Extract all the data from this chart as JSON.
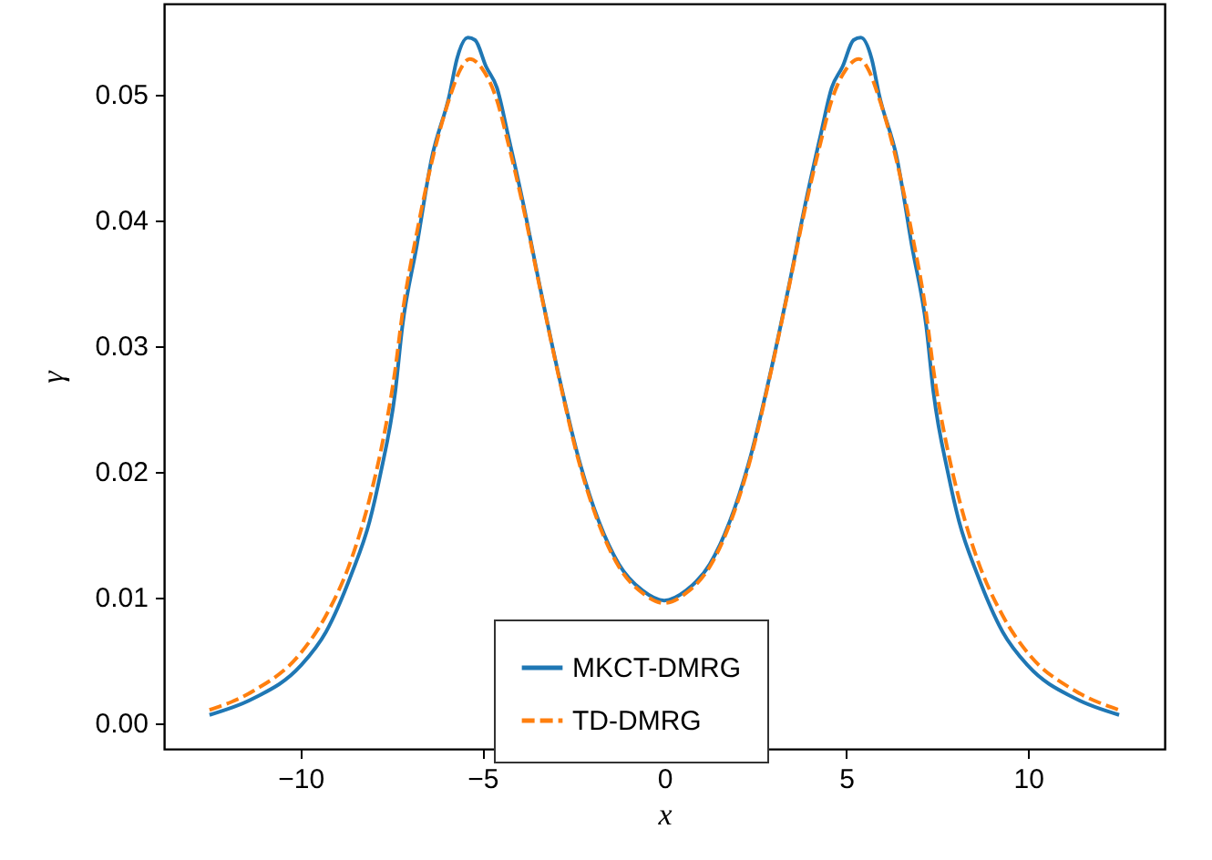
{
  "chart_data": {
    "type": "line",
    "xlabel": "x",
    "ylabel": "γ",
    "xlim": [
      -13.75,
      13.75
    ],
    "xticks": [
      {
        "value": -10,
        "label": "−10"
      },
      {
        "value": -5,
        "label": "−5"
      },
      0,
      5,
      10
    ],
    "ylim": [
      -0.0021,
      0.0572
    ],
    "yticks": [
      {
        "value": 0,
        "label": "0.00"
      },
      {
        "value": 0.01,
        "label": "0.01"
      },
      {
        "value": 0.02,
        "label": "0.02"
      },
      {
        "value": 0.03,
        "label": "0.03"
      },
      {
        "value": 0.04,
        "label": "0.04"
      },
      {
        "value": 0.05,
        "label": "0.05"
      }
    ],
    "grid": false,
    "legend": "bottom",
    "marker": "none",
    "series": [
      {
        "name": "MKCT-DMRG",
        "color": "#1f77b4",
        "line_style": "solid",
        "x": [
          -12.5,
          -11.3,
          -10,
          -9.3,
          -8.6,
          -8.1,
          -7.8,
          -7.4,
          -7.2,
          -6.8,
          -6.4,
          -5.9,
          -5.7,
          -5.4,
          -5.2,
          -4.9,
          -4.6,
          -4.3,
          -3.9,
          -3.4,
          -2.9,
          -2.4,
          -1.8,
          -1.25,
          -0.6,
          0,
          0.6,
          1.25,
          1.8,
          2.4,
          2.9,
          3.4,
          3.9,
          4.3,
          4.6,
          4.9,
          5.2,
          5.4,
          5.7,
          5.9,
          6.4,
          6.8,
          7.2,
          7.4,
          7.8,
          8.1,
          8.6,
          9.3,
          10,
          11.3,
          12.5
        ],
        "values": [
          0.0006,
          0.0019,
          0.0045,
          0.0072,
          0.0118,
          0.016,
          0.0198,
          0.0262,
          0.0315,
          0.038,
          0.0448,
          0.05,
          0.0528,
          0.0545,
          0.0543,
          0.0522,
          0.0505,
          0.0468,
          0.0416,
          0.0344,
          0.0276,
          0.0215,
          0.016,
          0.0126,
          0.0105,
          0.0097,
          0.0105,
          0.0126,
          0.016,
          0.0215,
          0.0276,
          0.0344,
          0.0416,
          0.0468,
          0.0505,
          0.0522,
          0.0543,
          0.0545,
          0.0528,
          0.05,
          0.0448,
          0.038,
          0.0315,
          0.0262,
          0.0198,
          0.016,
          0.0118,
          0.0072,
          0.0045,
          0.0019,
          0.0006
        ]
      },
      {
        "name": "TD-DMRG",
        "color": "#ff7f0e",
        "line_style": "dashed",
        "x": [
          -12.5,
          -11.3,
          -10,
          -9.3,
          -8.6,
          -8.1,
          -7.8,
          -7.4,
          -7.2,
          -6.8,
          -6.4,
          -5.9,
          -5.6,
          -5.35,
          -5.0,
          -4.6,
          -4.3,
          -3.9,
          -3.4,
          -2.9,
          -2.4,
          -1.8,
          -1.25,
          -0.6,
          0,
          0.6,
          1.25,
          1.8,
          2.4,
          2.9,
          3.4,
          3.9,
          4.3,
          4.6,
          5.0,
          5.35,
          5.6,
          5.9,
          6.4,
          6.8,
          7.2,
          7.4,
          7.8,
          8.1,
          8.6,
          9.3,
          10,
          11.3,
          12.5
        ],
        "values": [
          0.001,
          0.0025,
          0.0055,
          0.0085,
          0.013,
          0.0178,
          0.0215,
          0.028,
          0.0325,
          0.039,
          0.0445,
          0.0497,
          0.052,
          0.0528,
          0.052,
          0.0495,
          0.0462,
          0.0413,
          0.0343,
          0.0275,
          0.0213,
          0.0158,
          0.0124,
          0.0103,
          0.0095,
          0.0103,
          0.0124,
          0.0158,
          0.0213,
          0.0275,
          0.0343,
          0.0413,
          0.0462,
          0.0495,
          0.052,
          0.0528,
          0.052,
          0.0497,
          0.0445,
          0.039,
          0.0325,
          0.028,
          0.0215,
          0.0178,
          0.013,
          0.0085,
          0.0055,
          0.0025,
          0.001
        ]
      }
    ]
  }
}
